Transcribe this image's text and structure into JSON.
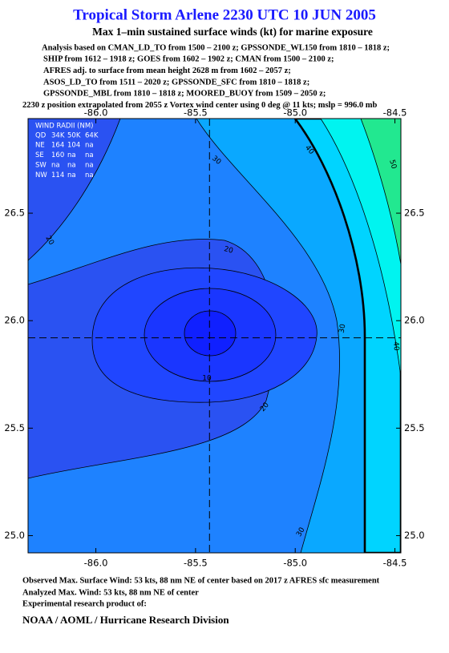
{
  "header": {
    "title": "Tropical Storm Arlene 2230 UTC 10 JUN 2005",
    "subtitle": "Max 1–min sustained surface winds (kt) for marine exposure",
    "analysis_lines": [
      "Analysis based on  CMAN_LD_TO from 1500 – 2100 z;  GPSSONDE_WL150 from 1810 – 1818 z;",
      "SHIP from 1612 – 1918 z;  GOES from 1602 – 1902 z;  CMAN from 1500 – 2100 z;",
      "AFRES adj. to surface from mean height 2628 m from 1602 – 2057 z;",
      "ASOS_LD_TO from 1511 – 2020 z;  GPSSONDE_SFC from 1810 – 1818 z;",
      "GPSSONDE_MBL from 1810 – 1818 z;  MOORED_BUOY from 1509 – 2050 z;",
      "2230 z position extrapolated from 2055 z Vortex wind center using 0 deg @ 11 kts; mslp = 996.0 mb"
    ]
  },
  "map": {
    "xlim": [
      -86.34,
      -84.47
    ],
    "ylim": [
      24.92,
      26.94
    ],
    "xticks": [
      {
        "value": -86.0,
        "label": "-86.0"
      },
      -85.5,
      {
        "value": -85.0,
        "label": "-85.0"
      },
      -84.5
    ],
    "yticks": [
      {
        "value": 25.0,
        "label": "25.0"
      },
      25.5,
      {
        "value": 26.0,
        "label": "26.0"
      },
      26.5
    ],
    "center": {
      "lon": -85.43,
      "lat": 25.92
    },
    "contour_labels": [
      20,
      20,
      20,
      30,
      30,
      30,
      40,
      40,
      50,
      10
    ],
    "wind_radii": {
      "title": "WIND RADII (NM)",
      "columns": [
        "QD",
        "34K",
        "50K",
        "64K"
      ],
      "rows": [
        [
          "NE",
          164,
          104,
          "na"
        ],
        [
          "SE",
          160,
          "na",
          "na"
        ],
        [
          "SW",
          "na",
          "na",
          "na"
        ],
        [
          "NW",
          114,
          "na",
          "na"
        ]
      ]
    }
  },
  "footer": {
    "lines": [
      "Observed Max. Surface Wind: 53 kts, 88 nm NE of center based on 2017 z AFRES sfc measurement",
      "Analyzed Max. Wind: 53 kts, 88 nm NE of center",
      "Experimental research product of:"
    ],
    "org": "NOAA / AOML / Hurricane Research Division"
  }
}
